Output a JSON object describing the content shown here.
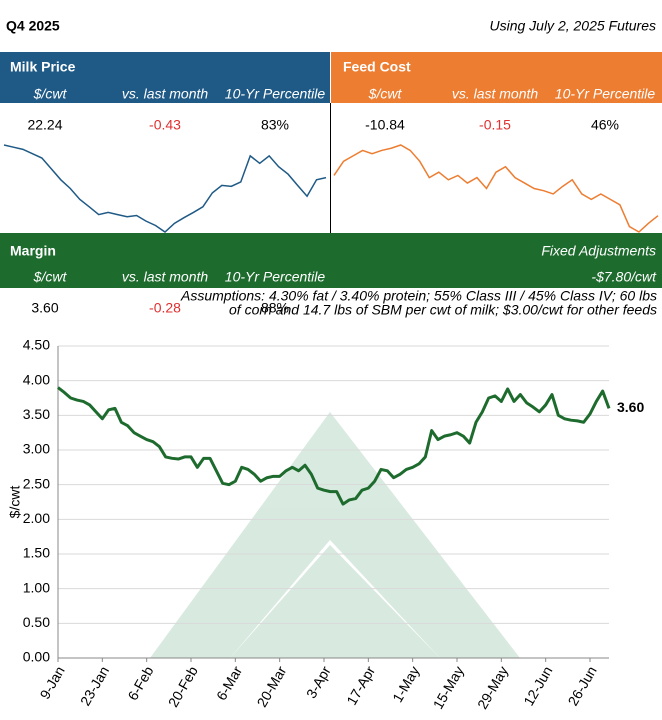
{
  "header": {
    "title": "Q4 2025",
    "note": "Using July 2, 2025 Futures"
  },
  "milk": {
    "title": "Milk Price",
    "columns": [
      "$/cwt",
      "vs. last month",
      "10-Yr Percentile"
    ],
    "values": [
      "22.24",
      "-0.43",
      "83%"
    ]
  },
  "feed": {
    "title": "Feed Cost",
    "columns": [
      "$/cwt",
      "vs. last month",
      "10-Yr Percentile"
    ],
    "values": [
      "-10.84",
      "-0.15",
      "46%"
    ]
  },
  "margin": {
    "title": "Margin",
    "adjust_title": "Fixed Adjustments",
    "adjust_value": "-$7.80/cwt",
    "columns": [
      "$/cwt",
      "vs. last month",
      "10-Yr Percentile"
    ],
    "values": [
      "3.60",
      "-0.28",
      "88%"
    ],
    "assumptions": [
      "Assumptions: 4.30% fat / 3.40% protein; 55% Class III / 45% Class IV; 60 lbs",
      "of corn and 14.7 lbs of SBM per cwt of milk; $3.00/cwt for other feeds"
    ]
  },
  "chart_data": [
    {
      "type": "sparkline",
      "color": "#1f5a86",
      "values": [
        23.29,
        23.22,
        23.15,
        23.01,
        22.87,
        22.52,
        22.17,
        21.89,
        21.54,
        21.3,
        21.05,
        21.12,
        21.05,
        20.98,
        21.02,
        20.84,
        20.7,
        20.49,
        20.77,
        20.95,
        21.12,
        21.3,
        21.75,
        21.99,
        21.96,
        22.1,
        22.94,
        22.7,
        22.94,
        22.59,
        22.35,
        21.99,
        21.64,
        22.17,
        22.24
      ]
    },
    {
      "type": "sparkline",
      "color": "#ed7d31",
      "values": [
        -10.1,
        -9.84,
        -9.74,
        -9.64,
        -9.7,
        -9.64,
        -9.6,
        -9.54,
        -9.64,
        -9.84,
        -10.14,
        -10.04,
        -10.18,
        -10.1,
        -10.24,
        -10.14,
        -10.34,
        -10.04,
        -9.94,
        -10.14,
        -10.24,
        -10.34,
        -10.38,
        -10.44,
        -10.3,
        -10.18,
        -10.44,
        -10.54,
        -10.44,
        -10.54,
        -10.64,
        -11.04,
        -11.14,
        -10.98,
        -10.84
      ]
    },
    {
      "type": "line",
      "y_label": "$/cwt",
      "color": "#1e6b2e",
      "grid": true,
      "ylim": [
        0,
        4.5
      ],
      "yticks": [
        {
          "value": 0,
          "label": "0.00"
        },
        {
          "value": 0.5,
          "label": "0.50"
        },
        {
          "value": 1,
          "label": "1.00"
        },
        {
          "value": 1.5,
          "label": "1.50"
        },
        {
          "value": 2,
          "label": "2.00"
        },
        {
          "value": 2.5,
          "label": "2.50"
        },
        {
          "value": 3,
          "label": "3.00"
        },
        {
          "value": 3.5,
          "label": "3.50"
        },
        {
          "value": 4,
          "label": "4.00"
        },
        {
          "value": 4.5,
          "label": "4.50"
        }
      ],
      "categories": [
        "9-Jan",
        null,
        null,
        null,
        null,
        null,
        null,
        "23-Jan",
        null,
        null,
        null,
        null,
        null,
        null,
        "6-Feb",
        null,
        null,
        null,
        null,
        null,
        null,
        "20-Feb",
        null,
        null,
        null,
        null,
        null,
        null,
        "6-Mar",
        null,
        null,
        null,
        null,
        null,
        null,
        "20-Mar",
        null,
        null,
        null,
        null,
        null,
        null,
        "3-Apr",
        null,
        null,
        null,
        null,
        null,
        null,
        "17-Apr",
        null,
        null,
        null,
        null,
        null,
        null,
        "1-May",
        null,
        null,
        null,
        null,
        null,
        null,
        "15-May",
        null,
        null,
        null,
        null,
        null,
        null,
        "29-May",
        null,
        null,
        null,
        null,
        null,
        null,
        "12-Jun",
        null,
        null,
        null,
        null,
        null,
        null,
        "26-Jun",
        null,
        null,
        null
      ],
      "values": [
        3.9,
        3.83,
        3.75,
        3.72,
        3.7,
        3.65,
        3.55,
        3.45,
        3.58,
        3.6,
        3.4,
        3.35,
        3.25,
        3.2,
        3.15,
        3.12,
        3.05,
        2.9,
        2.88,
        2.87,
        2.9,
        2.9,
        2.75,
        2.88,
        2.88,
        2.7,
        2.52,
        2.5,
        2.55,
        2.75,
        2.72,
        2.65,
        2.55,
        2.6,
        2.62,
        2.62,
        2.7,
        2.75,
        2.7,
        2.78,
        2.65,
        2.45,
        2.42,
        2.4,
        2.4,
        2.22,
        2.28,
        2.3,
        2.42,
        2.45,
        2.55,
        2.72,
        2.7,
        2.6,
        2.65,
        2.72,
        2.75,
        2.8,
        2.9,
        3.28,
        3.15,
        3.2,
        3.22,
        3.25,
        3.2,
        3.1,
        3.4,
        3.55,
        3.75,
        3.78,
        3.7,
        3.88,
        3.7,
        3.8,
        3.68,
        3.62,
        3.55,
        3.65,
        3.8,
        3.5,
        3.45,
        3.43,
        3.42,
        3.4,
        3.52,
        3.7,
        3.85,
        3.6
      ],
      "value_labels": [
        null,
        null,
        null,
        null,
        null,
        null,
        null,
        null,
        null,
        null,
        null,
        null,
        null,
        null,
        null,
        null,
        null,
        null,
        null,
        null,
        null,
        null,
        null,
        null,
        null,
        null,
        null,
        null,
        null,
        null,
        null,
        null,
        null,
        null,
        null,
        null,
        null,
        null,
        null,
        null,
        null,
        null,
        null,
        null,
        null,
        null,
        null,
        null,
        null,
        null,
        null,
        null,
        null,
        null,
        null,
        null,
        null,
        null,
        null,
        null,
        null,
        null,
        null,
        null,
        null,
        null,
        null,
        null,
        null,
        null,
        null,
        null,
        null,
        null,
        null,
        null,
        null,
        null,
        null,
        null,
        null,
        null,
        null,
        null,
        null,
        null,
        null,
        "3.60"
      ]
    }
  ]
}
